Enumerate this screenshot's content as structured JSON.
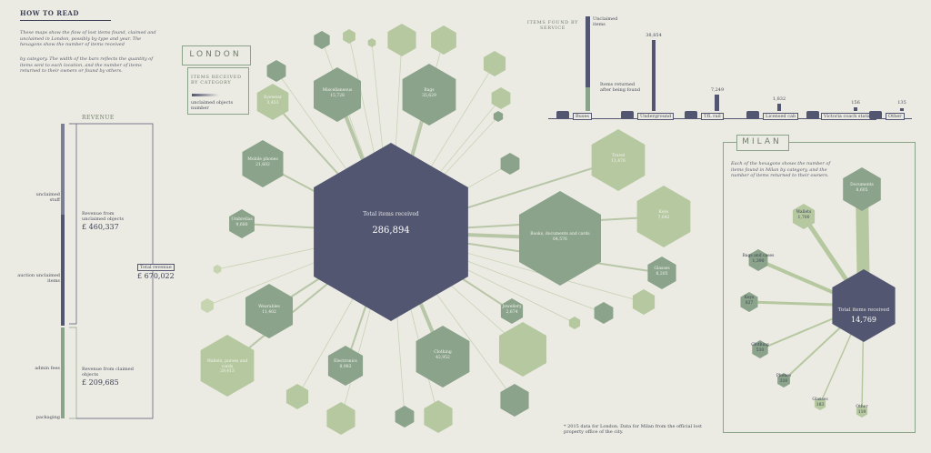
{
  "how_to_read": {
    "title": "HOW TO READ",
    "para1": "These maps show the flow of lost items found, claimed and unclaimed in London, possibly by type and year. The hexagons show the number of items received",
    "para2": "by category. The width of the bars reflects the quantity of items sent to each location, and the number of items returned to their owners or found by others."
  },
  "revenue": {
    "title": "REVENUE",
    "unclaimed_label": "unclaimed stuff",
    "auction_label": "auction unclaimed items",
    "admin_label": "admin fees",
    "packaging_label": "packaging",
    "from_unclaimed_label": "Revenue from unclaimed objects",
    "from_unclaimed_value": "£ 460,337",
    "from_claimed_label": "Revenue from claimed objects",
    "from_claimed_value": "£ 209,685",
    "total_label": "Total revenue",
    "total_value": "£ 670,022"
  },
  "london": {
    "title": "LONDON",
    "legend_title": "ITEMS RECEIVED BY CATEGORY",
    "legend_caption": "unclaimed objects number",
    "center_label": "Total items received",
    "center_value": "286,894",
    "categories": [
      {
        "name": "Miscellaneous",
        "value": "15,728"
      },
      {
        "name": "Bags",
        "value": "35,629"
      },
      {
        "name": "Mobile phones",
        "value": "21,602"
      },
      {
        "name": "Books, documents and cards",
        "value": "64,576"
      },
      {
        "name": "Clothing",
        "value": "42,952"
      },
      {
        "name": "Wearables",
        "value": "11,402"
      },
      {
        "name": "Wallets, purses and cards",
        "value": "29,413"
      },
      {
        "name": "Umbrellas",
        "value": "9,680"
      },
      {
        "name": "Electronics",
        "value": "8,983"
      },
      {
        "name": "Travel",
        "value": "11,476"
      },
      {
        "name": "Keys",
        "value": "7,642"
      },
      {
        "name": "Jewellery",
        "value": "2,674"
      },
      {
        "name": "Eyewear",
        "value": "3,453"
      },
      {
        "name": "Glasses",
        "value": "8,205"
      }
    ]
  },
  "services": {
    "title": "ITEMS FOUND BY SERVICE",
    "callout_top": "Unclaimed items",
    "callout_mid": "Items returned after being found",
    "items": [
      {
        "name": "Buses",
        "value": "",
        "icon": "bus-icon"
      },
      {
        "name": "Underground",
        "value": "38,854",
        "icon": "underground-icon"
      },
      {
        "name": "TfL rail",
        "value": "7,249",
        "icon": "train-icon"
      },
      {
        "name": "Licensed cab",
        "value": "1,832",
        "icon": "taxi-icon"
      },
      {
        "name": "Victoria coach station",
        "value": "156",
        "icon": "coach-icon"
      },
      {
        "name": "Other",
        "value": "135",
        "icon": "other-icon"
      }
    ]
  },
  "milan": {
    "title": "MILAN",
    "description": "Each of the hexagons shows the number of items found in Milan by category, and the number of items returned to their owners.",
    "center_label": "Total items received",
    "center_value": "14,769",
    "satellites": [
      {
        "name": "Documents",
        "value": "8,605"
      },
      {
        "name": "Wallets",
        "value": "1,700"
      },
      {
        "name": "Bags and cases",
        "value": "1,390"
      },
      {
        "name": "Keys",
        "value": "827"
      },
      {
        "name": "Clothing",
        "value": "510"
      },
      {
        "name": "Phones",
        "value": "310"
      },
      {
        "name": "Glasses",
        "value": "183"
      },
      {
        "name": "Other",
        "value": "119"
      }
    ]
  },
  "footer": {
    "note": "* 2015 data for London. Data for Milan from the official lost property office of the city."
  },
  "colors": {
    "dark": "#525670",
    "mid": "#8aa38a",
    "light": "#b6c8a0",
    "pale": "#c7d4b0",
    "background": "#ecebe3"
  }
}
